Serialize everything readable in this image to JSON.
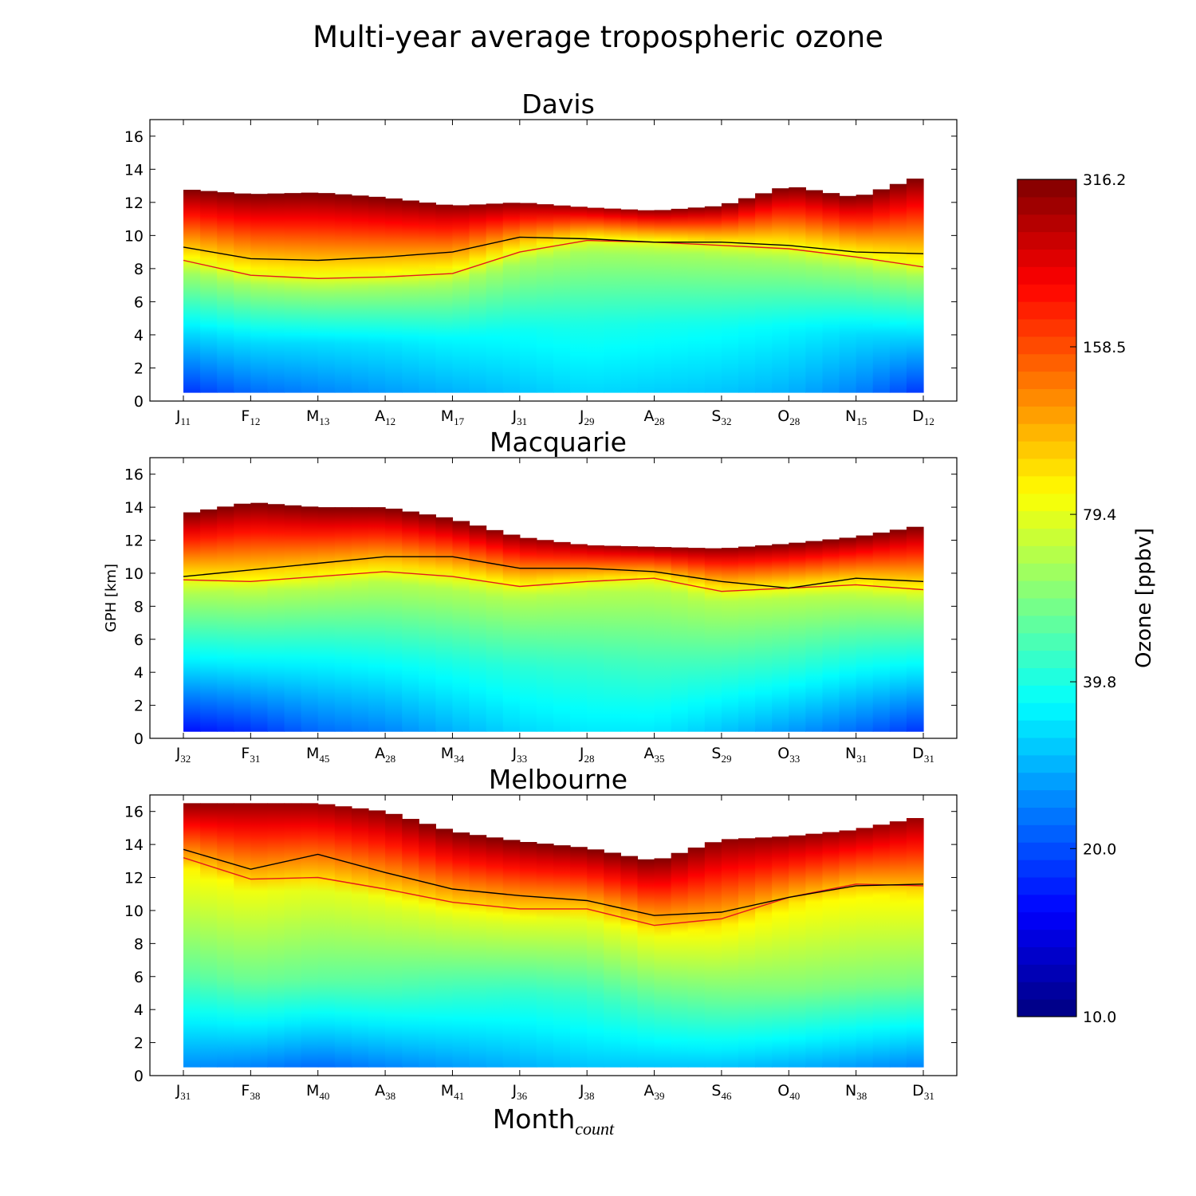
{
  "figure_title": "Multi-year average tropospheric ozone",
  "ylabel": "GPH [km]",
  "xlabel_main": "Month",
  "xlabel_sub": "count",
  "colorbar": {
    "label": "Ozone [ppbv]",
    "ticks": [
      "10.0",
      "20.0",
      "39.8",
      "79.4",
      "158.5",
      "316.2"
    ],
    "tick_values": [
      10.0,
      20.0,
      39.8,
      79.4,
      158.5,
      316.2
    ],
    "scale": "log",
    "colormap": "jet"
  },
  "colors": {
    "tropopause_black": "#000000",
    "tropopause_red": "#e41a1c"
  },
  "chart_data": [
    {
      "type": "heatmap",
      "title": "Davis",
      "ylim": [
        0,
        17
      ],
      "yticks": [
        0,
        2,
        4,
        6,
        8,
        10,
        12,
        14,
        16
      ],
      "months": [
        "J",
        "F",
        "M",
        "A",
        "M",
        "J",
        "J",
        "A",
        "S",
        "O",
        "N",
        "D"
      ],
      "counts": [
        "11",
        "12",
        "13",
        "12",
        "17",
        "31",
        "29",
        "28",
        "32",
        "28",
        "15",
        "12"
      ],
      "data_top_km": [
        12.8,
        12.5,
        12.6,
        12.3,
        11.8,
        12.0,
        11.7,
        11.5,
        11.8,
        13.0,
        12.3,
        13.6
      ],
      "data_bottom_km": 0.5,
      "tropopause_black": [
        9.3,
        8.6,
        8.5,
        8.7,
        9.0,
        9.9,
        9.8,
        9.6,
        9.6,
        9.4,
        9.0,
        8.9
      ],
      "tropopause_red": [
        8.5,
        7.6,
        7.4,
        7.5,
        7.7,
        9.0,
        9.7,
        9.6,
        9.4,
        9.2,
        8.7,
        8.1
      ],
      "surface_ozone_ppbv": [
        18,
        22,
        24,
        26,
        28,
        30,
        32,
        31,
        30,
        28,
        24,
        18
      ],
      "mid_ozone_ppbv": [
        32,
        33,
        33,
        34,
        36,
        38,
        40,
        39,
        38,
        36,
        33,
        32
      ],
      "tropopause_ozone_ppbv": [
        80,
        80,
        80,
        80,
        80,
        80,
        80,
        80,
        80,
        80,
        80,
        80
      ],
      "top_ozone_ppbv": [
        316,
        316,
        316,
        316,
        300,
        300,
        280,
        300,
        316,
        316,
        316,
        316
      ]
    },
    {
      "type": "heatmap",
      "title": "Macquarie",
      "ylim": [
        0,
        17
      ],
      "yticks": [
        0,
        2,
        4,
        6,
        8,
        10,
        12,
        14,
        16
      ],
      "months": [
        "J",
        "F",
        "M",
        "A",
        "M",
        "J",
        "J",
        "A",
        "S",
        "O",
        "N",
        "D"
      ],
      "counts": [
        "32",
        "31",
        "45",
        "28",
        "34",
        "33",
        "28",
        "35",
        "29",
        "33",
        "31",
        "31"
      ],
      "data_top_km": [
        13.6,
        14.3,
        14.0,
        14.0,
        13.3,
        12.2,
        11.7,
        11.6,
        11.5,
        11.8,
        12.2,
        12.9
      ],
      "data_bottom_km": 0.4,
      "tropopause_black": [
        9.8,
        10.2,
        10.6,
        11.0,
        11.0,
        10.3,
        10.3,
        10.1,
        9.5,
        9.1,
        9.7,
        9.5
      ],
      "tropopause_red": [
        9.6,
        9.5,
        9.8,
        10.1,
        9.8,
        9.2,
        9.5,
        9.7,
        8.9,
        9.1,
        9.3,
        9.0
      ],
      "surface_ozone_ppbv": [
        16,
        18,
        22,
        24,
        28,
        32,
        34,
        34,
        30,
        26,
        22,
        18
      ],
      "mid_ozone_ppbv": [
        34,
        35,
        36,
        38,
        40,
        42,
        44,
        46,
        44,
        42,
        38,
        35
      ],
      "tropopause_ozone_ppbv": [
        85,
        85,
        85,
        85,
        85,
        85,
        85,
        85,
        85,
        85,
        85,
        85
      ],
      "top_ozone_ppbv": [
        316,
        316,
        316,
        316,
        316,
        300,
        280,
        300,
        300,
        316,
        316,
        316
      ]
    },
    {
      "type": "heatmap",
      "title": "Melbourne",
      "ylim": [
        0,
        17
      ],
      "yticks": [
        0,
        2,
        4,
        6,
        8,
        10,
        12,
        14,
        16
      ],
      "months": [
        "J",
        "F",
        "M",
        "A",
        "M",
        "J",
        "J",
        "A",
        "S",
        "O",
        "N",
        "D"
      ],
      "counts": [
        "31",
        "38",
        "40",
        "38",
        "41",
        "36",
        "38",
        "39",
        "46",
        "40",
        "38",
        "31"
      ],
      "data_top_km": [
        16.5,
        16.5,
        16.5,
        16.0,
        14.8,
        14.2,
        13.8,
        13.0,
        14.3,
        14.5,
        14.9,
        15.7
      ],
      "data_bottom_km": 0.5,
      "tropopause_black": [
        13.7,
        12.5,
        13.4,
        12.3,
        11.3,
        10.9,
        10.6,
        9.7,
        9.9,
        10.8,
        11.5,
        11.6
      ],
      "tropopause_red": [
        13.2,
        11.9,
        12.0,
        11.3,
        10.5,
        10.1,
        10.1,
        9.1,
        9.5,
        10.8,
        11.6,
        11.5
      ],
      "surface_ozone_ppbv": [
        25,
        24,
        22,
        24,
        26,
        28,
        30,
        30,
        30,
        28,
        26,
        24
      ],
      "mid_ozone_ppbv": [
        50,
        52,
        50,
        48,
        44,
        42,
        44,
        48,
        52,
        56,
        56,
        54
      ],
      "tropopause_ozone_ppbv": [
        110,
        105,
        100,
        100,
        100,
        100,
        100,
        105,
        110,
        110,
        110,
        110
      ],
      "top_ozone_ppbv": [
        300,
        290,
        290,
        300,
        316,
        316,
        316,
        316,
        300,
        300,
        290,
        290
      ]
    }
  ]
}
